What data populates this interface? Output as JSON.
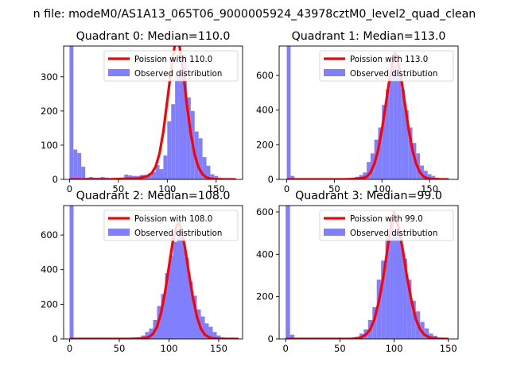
{
  "figure": {
    "suptitle": "n file: modeM0/AS1A13_065T06_9000005924_43978cztM0_level2_quad_clean"
  },
  "colors": {
    "poisson": "#ff0000",
    "observed": "#8080ff",
    "legend_border": "#cccccc"
  },
  "chart_data": [
    {
      "type": "bar",
      "title": "Quadrant 0: Median=110.0",
      "xlim": [
        -6,
        177
      ],
      "ylim": [
        0,
        390
      ],
      "xticks": [
        0,
        50,
        100,
        150
      ],
      "yticks": [
        0,
        100,
        200,
        300
      ],
      "legend_position": "upper-right",
      "bin_width": 4,
      "hist": {
        "name": "Observed distribution",
        "bins_x": [
          0,
          4,
          8,
          12,
          16,
          20,
          24,
          28,
          32,
          36,
          40,
          44,
          48,
          52,
          56,
          60,
          64,
          68,
          72,
          76,
          80,
          84,
          88,
          92,
          96,
          100,
          104,
          108,
          112,
          116,
          120,
          124,
          128,
          132,
          136,
          140,
          144,
          148,
          152,
          156,
          160,
          164
        ],
        "counts": [
          390,
          87,
          77,
          37,
          5,
          7,
          5,
          5,
          7,
          5,
          3,
          3,
          4,
          5,
          14,
          12,
          10,
          10,
          13,
          13,
          17,
          22,
          42,
          30,
          70,
          170,
          220,
          300,
          310,
          365,
          240,
          200,
          140,
          120,
          65,
          40,
          15,
          10,
          5,
          2,
          1,
          1
        ]
      },
      "poisson": {
        "name": "Poission with 110.0",
        "mean": 110.0,
        "x": [
          0,
          20,
          40,
          60,
          70,
          80,
          84,
          88,
          92,
          96,
          100,
          104,
          108,
          110,
          112,
          116,
          120,
          124,
          128,
          132,
          136,
          140,
          144,
          148,
          152,
          160,
          170
        ],
        "y": [
          0,
          0,
          0,
          2,
          2,
          10,
          18,
          37,
          75,
          140,
          230,
          320,
          400,
          410,
          400,
          320,
          220,
          135,
          72,
          35,
          15,
          6,
          2,
          1,
          0,
          0,
          0
        ]
      }
    },
    {
      "type": "bar",
      "title": "Quadrant 1: Median=113.0",
      "xlim": [
        -8,
        180
      ],
      "ylim": [
        0,
        770
      ],
      "xticks": [
        0,
        50,
        100,
        150
      ],
      "yticks": [
        0,
        200,
        400,
        600
      ],
      "legend_position": "upper-right",
      "bin_width": 4,
      "hist": {
        "name": "Observed distribution",
        "bins_x": [
          0,
          4,
          8,
          60,
          64,
          68,
          72,
          76,
          80,
          84,
          88,
          92,
          96,
          100,
          104,
          108,
          112,
          116,
          120,
          124,
          128,
          132,
          136,
          140,
          144,
          148,
          152,
          156,
          160,
          164,
          168
        ],
        "counts": [
          770,
          20,
          5,
          3,
          5,
          10,
          15,
          25,
          40,
          100,
          150,
          230,
          300,
          430,
          520,
          620,
          660,
          600,
          520,
          400,
          300,
          210,
          150,
          80,
          50,
          30,
          20,
          10,
          5,
          3,
          2
        ]
      },
      "poisson": {
        "name": "Poission with 113.0",
        "mean": 113.0,
        "x": [
          0,
          40,
          60,
          70,
          80,
          84,
          88,
          92,
          96,
          100,
          104,
          108,
          112,
          114,
          116,
          120,
          124,
          128,
          132,
          136,
          140,
          144,
          148,
          152,
          160,
          170
        ],
        "y": [
          0,
          0,
          0,
          2,
          8,
          15,
          40,
          90,
          170,
          290,
          430,
          580,
          700,
          730,
          700,
          590,
          440,
          290,
          170,
          90,
          40,
          15,
          6,
          2,
          0,
          0
        ]
      }
    },
    {
      "type": "bar",
      "title": "Quadrant 2: Median=108.0",
      "xlim": [
        -6,
        174
      ],
      "ylim": [
        0,
        770
      ],
      "xticks": [
        0,
        50,
        100,
        150
      ],
      "yticks": [
        0,
        200,
        400,
        600
      ],
      "legend_position": "upper-right",
      "bin_width": 4,
      "hist": {
        "name": "Observed distribution",
        "bins_x": [
          0,
          60,
          64,
          68,
          72,
          76,
          80,
          84,
          88,
          92,
          96,
          100,
          104,
          108,
          112,
          116,
          120,
          124,
          128,
          132,
          136,
          140,
          144,
          148,
          152,
          156,
          160
        ],
        "counts": [
          770,
          3,
          5,
          10,
          20,
          40,
          60,
          110,
          190,
          260,
          380,
          480,
          560,
          620,
          600,
          470,
          330,
          250,
          170,
          130,
          90,
          70,
          40,
          20,
          10,
          5,
          2
        ]
      },
      "poisson": {
        "name": "Poission with 108.0",
        "mean": 108.0,
        "x": [
          0,
          40,
          60,
          70,
          76,
          80,
          84,
          88,
          92,
          96,
          100,
          104,
          108,
          110,
          112,
          116,
          120,
          124,
          128,
          132,
          136,
          140,
          144,
          150,
          160,
          170
        ],
        "y": [
          0,
          0,
          0,
          2,
          5,
          12,
          30,
          70,
          150,
          270,
          420,
          570,
          660,
          670,
          640,
          530,
          380,
          240,
          130,
          60,
          25,
          10,
          3,
          1,
          0,
          0
        ]
      }
    },
    {
      "type": "bar",
      "title": "Quadrant 3: Median=99.0",
      "xlim": [
        -6,
        159
      ],
      "ylim": [
        0,
        630
      ],
      "xticks": [
        0,
        50,
        100,
        150
      ],
      "yticks": [
        0,
        200,
        400,
        600
      ],
      "legend_position": "upper-right",
      "bin_width": 4,
      "hist": {
        "name": "Observed distribution",
        "bins_x": [
          0,
          4,
          8,
          56,
          60,
          64,
          68,
          72,
          76,
          80,
          84,
          88,
          92,
          96,
          100,
          104,
          108,
          112,
          116,
          120,
          124,
          128,
          132,
          136,
          140,
          144
        ],
        "counts": [
          630,
          20,
          5,
          3,
          5,
          10,
          25,
          45,
          90,
          150,
          280,
          370,
          480,
          560,
          510,
          480,
          380,
          280,
          180,
          130,
          80,
          50,
          25,
          15,
          5,
          3
        ]
      },
      "poisson": {
        "name": "Poission with 99.0",
        "mean": 99.0,
        "x": [
          0,
          40,
          60,
          66,
          70,
          74,
          78,
          82,
          86,
          90,
          94,
          98,
          100,
          104,
          108,
          112,
          116,
          120,
          124,
          128,
          132,
          136,
          140,
          146,
          150
        ],
        "y": [
          0,
          0,
          0,
          3,
          8,
          20,
          45,
          95,
          180,
          290,
          430,
          560,
          600,
          530,
          420,
          290,
          180,
          95,
          45,
          20,
          8,
          3,
          1,
          0,
          0
        ]
      }
    }
  ]
}
